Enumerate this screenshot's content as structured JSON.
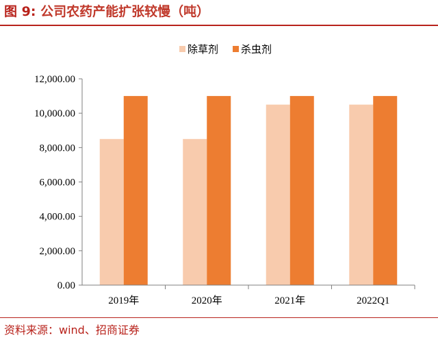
{
  "figure": {
    "label": "图 9:",
    "title": "公司农药产能扩张较慢（吨）",
    "source": "资料来源：wind、招商证券"
  },
  "chart_data": {
    "type": "bar",
    "title": "",
    "xlabel": "",
    "ylabel": "",
    "categories": [
      "2019年",
      "2020年",
      "2021年",
      "2022Q1"
    ],
    "series": [
      {
        "name": "除草剂",
        "values": [
          8500,
          8500,
          10500,
          10500
        ],
        "color": "#f8cbad"
      },
      {
        "name": "杀虫剂",
        "values": [
          11000,
          11000,
          11000,
          11000
        ],
        "color": "#ed7d31"
      }
    ],
    "ylim": [
      0,
      12000
    ],
    "yticks": [
      "0.00",
      "2,000.00",
      "4,000.00",
      "6,000.00",
      "8,000.00",
      "10,000.00",
      "12,000.00"
    ],
    "grid": false,
    "legend_position": "top-center"
  },
  "colors": {
    "title_red": "#b8221b",
    "axis": "#7f7f7f"
  }
}
